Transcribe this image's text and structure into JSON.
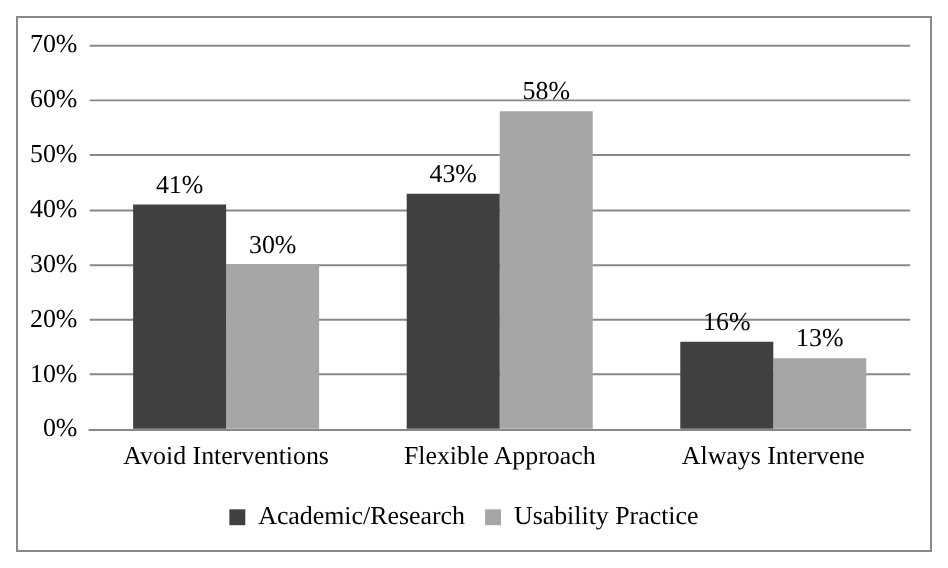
{
  "chart_data": {
    "type": "bar",
    "categories": [
      "Avoid Interventions",
      "Flexible Approach",
      "Always Intervene"
    ],
    "series": [
      {
        "name": "Academic/Research",
        "color": "#404040",
        "values": [
          41,
          43,
          16
        ],
        "value_labels": [
          "41%",
          "43%",
          "16%"
        ]
      },
      {
        "name": "Usability Practice",
        "color": "#a6a6a6",
        "values": [
          30,
          58,
          13
        ],
        "value_labels": [
          "30%",
          "58%",
          "13%"
        ]
      }
    ],
    "ylim": [
      0,
      70
    ],
    "yticks": [
      {
        "value": 0,
        "label": "0%"
      },
      {
        "value": 10,
        "label": "10%"
      },
      {
        "value": 20,
        "label": "20%"
      },
      {
        "value": 30,
        "label": "30%"
      },
      {
        "value": 40,
        "label": "40%"
      },
      {
        "value": 50,
        "label": "50%"
      },
      {
        "value": 60,
        "label": "60%"
      },
      {
        "value": 70,
        "label": "70%"
      }
    ],
    "grid": "y",
    "legend": "bottom"
  }
}
